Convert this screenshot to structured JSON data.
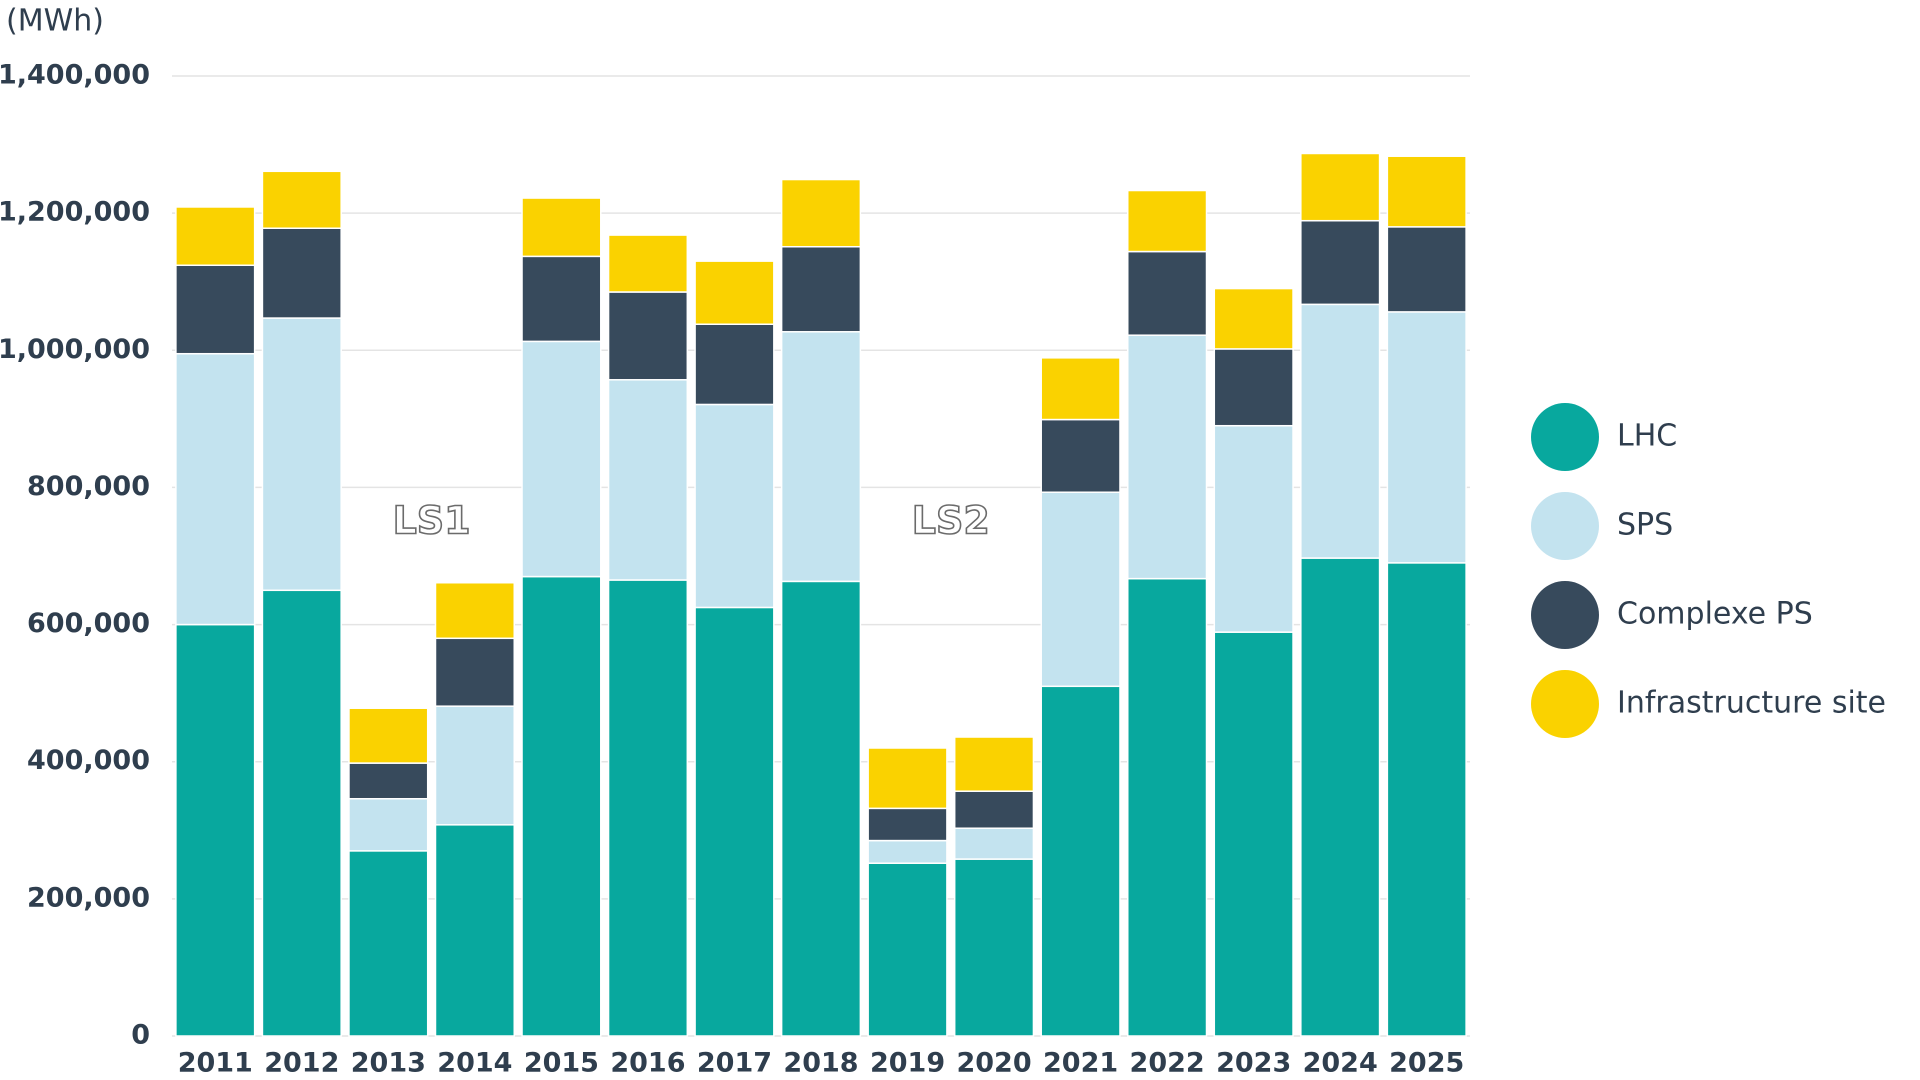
{
  "chart_data": {
    "type": "stacked_bar",
    "y_label": "(MWh)",
    "categories": [
      "2011",
      "2012",
      "2013",
      "2014",
      "2015",
      "2016",
      "2017",
      "2018",
      "2019",
      "2020",
      "2021",
      "2022",
      "2023",
      "2024",
      "2025"
    ],
    "series": [
      {
        "name": "LHC",
        "color": "#08a89e",
        "values": [
          600000,
          650000,
          270000,
          308000,
          670000,
          665000,
          625000,
          663000,
          252000,
          258000,
          510000,
          667000,
          589000,
          697000,
          690000
        ]
      },
      {
        "name": "SPS",
        "color": "#c3e3ef",
        "values": [
          395000,
          397000,
          76000,
          173000,
          343000,
          292000,
          296000,
          364000,
          33000,
          45000,
          283000,
          355000,
          301000,
          370000,
          366000
        ]
      },
      {
        "name": "Complexe PS",
        "color": "#374a5c",
        "values": [
          129000,
          131000,
          52000,
          99000,
          124000,
          128000,
          117000,
          124000,
          47000,
          54000,
          106000,
          122000,
          112000,
          122000,
          124000
        ]
      },
      {
        "name": "Infrastructure site",
        "color": "#fad200",
        "values": [
          85000,
          83000,
          80000,
          81000,
          85000,
          83000,
          92000,
          98000,
          88000,
          79000,
          90000,
          89000,
          88000,
          98000,
          103000
        ]
      }
    ],
    "annotations": [
      "LS1",
      "LS2"
    ],
    "ylim": [
      0,
      1400000
    ],
    "yticks": [
      0,
      {
        "value": 200000,
        "label": "200,000"
      },
      {
        "value": 400000,
        "label": "400,000"
      },
      {
        "value": 600000,
        "label": "600,000"
      },
      {
        "value": 800000,
        "label": "800,000"
      },
      {
        "value": 1000000,
        "label": "1,000,000"
      },
      {
        "value": 1200000,
        "label": "1,200,000"
      },
      {
        "value": 1400000,
        "label": "1,400,000"
      }
    ],
    "grid": true,
    "legend": "right"
  }
}
